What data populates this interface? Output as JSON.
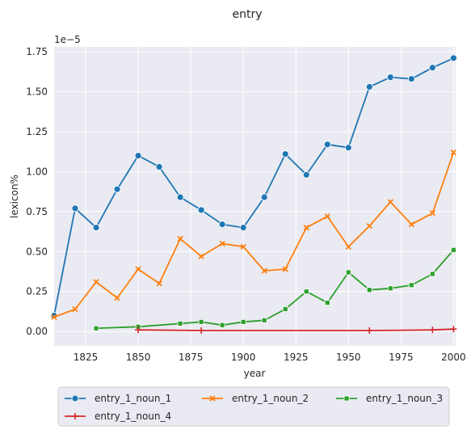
{
  "chart_data": {
    "type": "line",
    "title": "entry",
    "xlabel": "year",
    "ylabel": "lexicon%",
    "y_offset_label": "1e−5",
    "xlim": [
      1810,
      2001
    ],
    "ylim": [
      -0.09,
      1.78
    ],
    "x_ticks": [
      1825,
      1850,
      1875,
      1900,
      1925,
      1950,
      1975,
      2000
    ],
    "y_ticks": [
      0.0,
      0.25,
      0.5,
      0.75,
      1.0,
      1.25,
      1.5,
      1.75
    ],
    "y_tick_labels": [
      "0.00",
      "0.25",
      "0.50",
      "0.75",
      "1.00",
      "1.25",
      "1.50",
      "1.75"
    ],
    "grid": true,
    "legend_position": "bottom-outside",
    "series": [
      {
        "name": "entry_1_noun_1",
        "color": "#1f77b4",
        "marker": "circle",
        "points": [
          [
            1810,
            0.1
          ],
          [
            1820,
            0.77
          ],
          [
            1830,
            0.65
          ],
          [
            1840,
            0.89
          ],
          [
            1850,
            1.1
          ],
          [
            1860,
            1.03
          ],
          [
            1870,
            0.84
          ],
          [
            1880,
            0.76
          ],
          [
            1890,
            0.67
          ],
          [
            1900,
            0.65
          ],
          [
            1910,
            0.84
          ],
          [
            1920,
            1.11
          ],
          [
            1930,
            0.98
          ],
          [
            1940,
            1.17
          ],
          [
            1950,
            1.15
          ],
          [
            1960,
            1.53
          ],
          [
            1970,
            1.59
          ],
          [
            1980,
            1.58
          ],
          [
            1990,
            1.65
          ],
          [
            2000,
            1.71
          ]
        ]
      },
      {
        "name": "entry_1_noun_2",
        "color": "#ff7f0e",
        "marker": "x",
        "points": [
          [
            1810,
            0.09
          ],
          [
            1820,
            0.14
          ],
          [
            1830,
            0.31
          ],
          [
            1840,
            0.21
          ],
          [
            1850,
            0.39
          ],
          [
            1860,
            0.3
          ],
          [
            1870,
            0.58
          ],
          [
            1880,
            0.47
          ],
          [
            1890,
            0.55
          ],
          [
            1900,
            0.53
          ],
          [
            1910,
            0.38
          ],
          [
            1920,
            0.39
          ],
          [
            1930,
            0.65
          ],
          [
            1940,
            0.72
          ],
          [
            1950,
            0.53
          ],
          [
            1960,
            0.66
          ],
          [
            1970,
            0.81
          ],
          [
            1980,
            0.67
          ],
          [
            1990,
            0.74
          ],
          [
            2000,
            1.12
          ]
        ]
      },
      {
        "name": "entry_1_noun_3",
        "color": "#2ca02c",
        "marker": "square",
        "points": [
          [
            1830,
            0.02
          ],
          [
            1850,
            0.03
          ],
          [
            1870,
            0.05
          ],
          [
            1880,
            0.06
          ],
          [
            1890,
            0.04
          ],
          [
            1900,
            0.06
          ],
          [
            1910,
            0.07
          ],
          [
            1920,
            0.14
          ],
          [
            1930,
            0.25
          ],
          [
            1940,
            0.18
          ],
          [
            1950,
            0.37
          ],
          [
            1960,
            0.26
          ],
          [
            1970,
            0.27
          ],
          [
            1980,
            0.29
          ],
          [
            1990,
            0.36
          ],
          [
            2000,
            0.51
          ]
        ]
      },
      {
        "name": "entry_1_noun_4",
        "color": "#d62728",
        "marker": "plus",
        "points": [
          [
            1850,
            0.01
          ],
          [
            1880,
            0.006
          ],
          [
            1960,
            0.006
          ],
          [
            1990,
            0.01
          ],
          [
            2000,
            0.015
          ]
        ]
      }
    ]
  }
}
